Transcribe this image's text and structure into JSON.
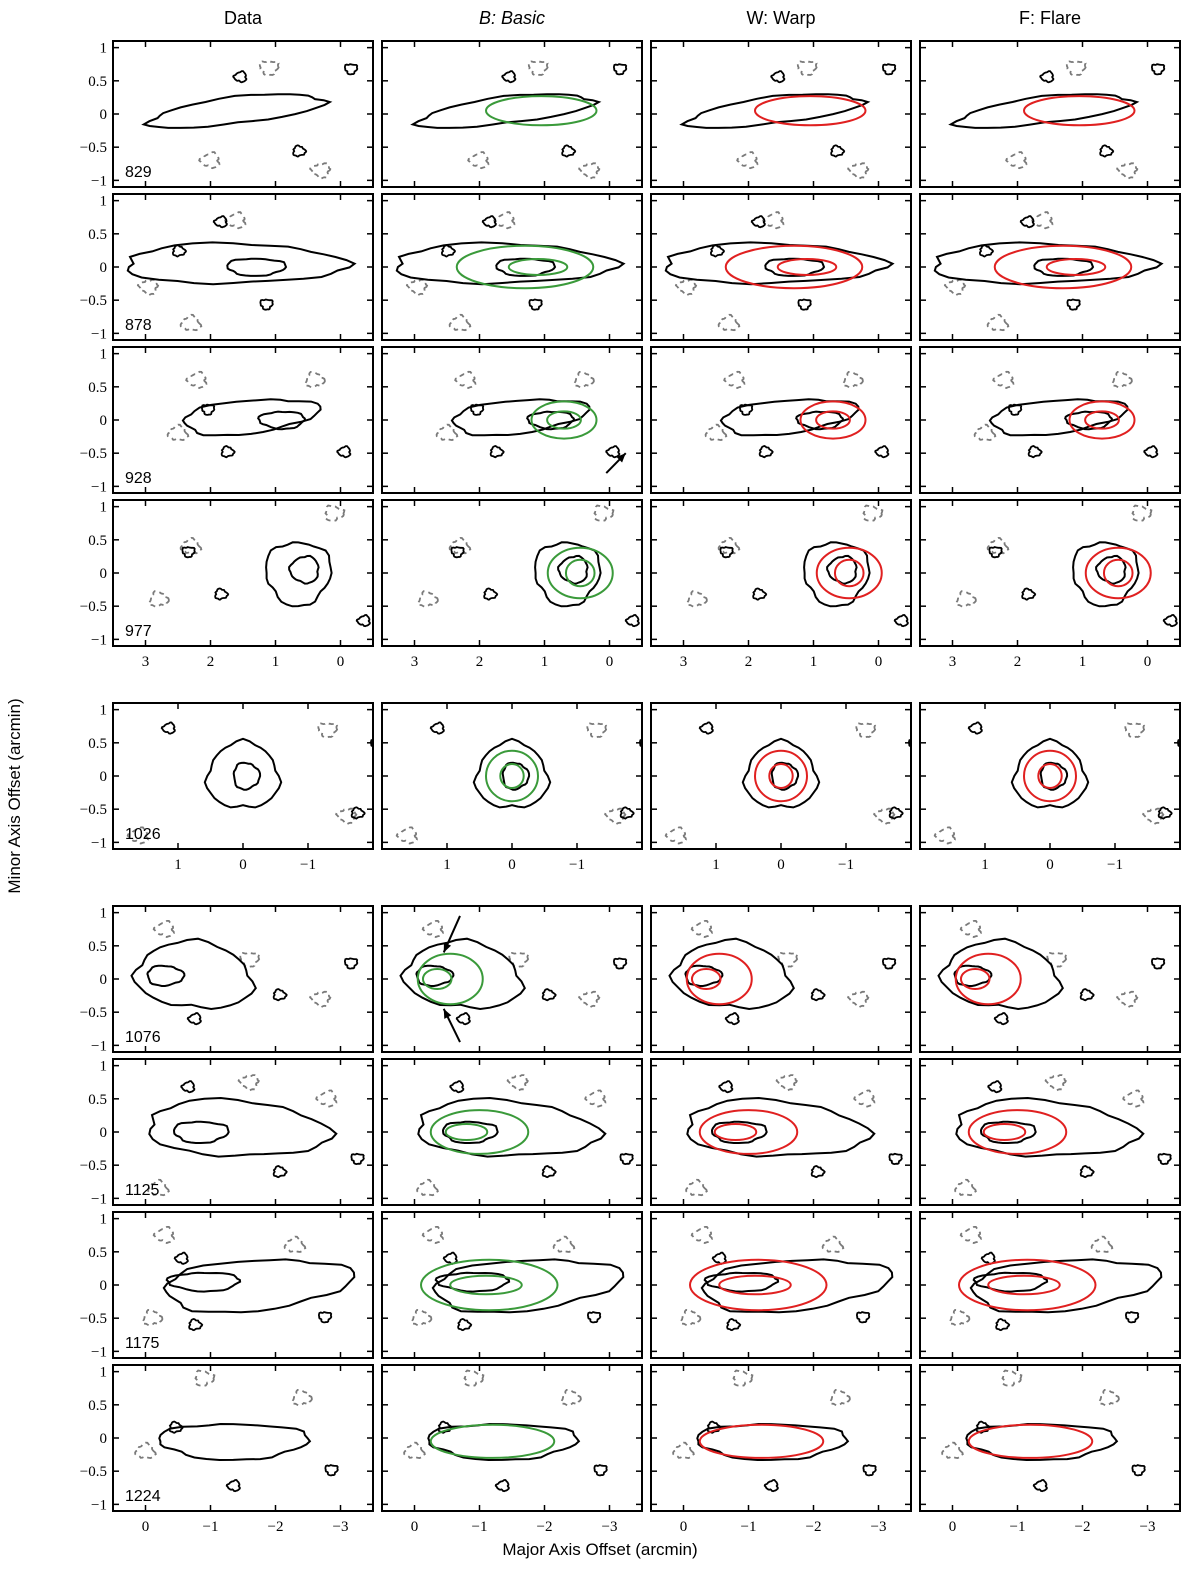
{
  "chart_data": {
    "type": "contour-panel-grid",
    "columns": [
      {
        "key": "data",
        "title": "Data",
        "italic": false,
        "model_color": null
      },
      {
        "key": "basic",
        "title": "B: Basic",
        "italic": true,
        "model_color": "#3a9a3a"
      },
      {
        "key": "warp",
        "title": "W: Warp",
        "italic": false,
        "model_color": "#e02020"
      },
      {
        "key": "flare",
        "title": "F: Flare",
        "italic": false,
        "model_color": "#e02020"
      }
    ],
    "xlabel": "Major Axis Offset (arcmin)",
    "ylabel": "Minor Axis Offset (arcmin)",
    "ylim": [
      -1.1,
      1.1
    ],
    "yticks": [
      1,
      0.5,
      0,
      -0.5,
      -1
    ],
    "ytick_labels": [
      "1",
      "0.5",
      "0",
      "−0.5",
      "−1"
    ],
    "colors": {
      "data_contour": "#000000",
      "negative_contour": "#7a7a7a",
      "basic_model": "#3a9a3a",
      "warp_model": "#e02020",
      "flare_model": "#e02020",
      "arrow": "#000000"
    },
    "groups": [
      {
        "xlim": [
          3.5,
          -0.5
        ],
        "xticks": [
          3,
          2,
          1,
          0
        ],
        "xtick_labels": [
          "3",
          "2",
          "1",
          "0"
        ],
        "rows": [
          {
            "channel": "829",
            "blobs": [
              [
                1.6,
                0.05,
                1.35,
                0.2,
                -0.12
              ]
            ],
            "model": [
              [
                1.05,
                0.05,
                0.85,
                0.22
              ]
            ],
            "negative": [
              [
                1.1,
                0.7
              ],
              [
                0.3,
                -0.85
              ],
              [
                2.0,
                -0.7
              ]
            ]
          },
          {
            "channel": "878",
            "blobs": [
              [
                1.65,
                0.05,
                1.7,
                0.3,
                0
              ],
              [
                1.3,
                0.0,
                0.45,
                0.13,
                0
              ]
            ],
            "model": [
              [
                1.3,
                0.0,
                1.05,
                0.32
              ],
              [
                1.1,
                0.0,
                0.45,
                0.12
              ]
            ],
            "negative": [
              [
                2.95,
                -0.3
              ],
              [
                1.6,
                0.7
              ],
              [
                2.3,
                -0.85
              ]
            ]
          },
          {
            "channel": "928",
            "blobs": [
              [
                1.4,
                0.05,
                1.05,
                0.25,
                -0.1
              ],
              [
                0.9,
                0.0,
                0.35,
                0.13,
                0
              ]
            ],
            "model": [
              [
                0.7,
                0.0,
                0.5,
                0.28
              ],
              [
                0.7,
                0.0,
                0.26,
                0.13
              ]
            ],
            "negative": [
              [
                2.2,
                0.6
              ],
              [
                2.5,
                -0.2
              ],
              [
                0.4,
                0.6
              ]
            ],
            "arrow": {
              "from": [
                0.05,
                -0.8
              ],
              "to": [
                -0.25,
                -0.5
              ]
            }
          },
          {
            "channel": "977",
            "blobs": [
              [
                0.65,
                0.0,
                0.5,
                0.48,
                0
              ],
              [
                0.55,
                0.05,
                0.22,
                0.2,
                0
              ]
            ],
            "model": [
              [
                0.45,
                0.0,
                0.5,
                0.38
              ],
              [
                0.45,
                0.0,
                0.22,
                0.2
              ]
            ],
            "negative": [
              [
                2.3,
                0.4
              ],
              [
                2.8,
                -0.4
              ],
              [
                0.1,
                0.9
              ]
            ]
          }
        ]
      },
      {
        "xlim": [
          2.0,
          -2.0
        ],
        "xticks": [
          1,
          0,
          -1
        ],
        "xtick_labels": [
          "1",
          "0",
          "−1"
        ],
        "rows": [
          {
            "channel": "1026",
            "blobs": [
              [
                0.0,
                0.0,
                0.55,
                0.5,
                0
              ],
              [
                -0.05,
                0.0,
                0.2,
                0.2,
                0
              ]
            ],
            "model": [
              [
                0.0,
                0.0,
                0.4,
                0.38
              ],
              [
                0.0,
                0.0,
                0.18,
                0.18
              ]
            ],
            "negative": [
              [
                -1.3,
                0.7
              ],
              [
                -1.6,
                -0.6
              ],
              [
                1.6,
                -0.9
              ]
            ]
          }
        ]
      },
      {
        "xlim": [
          0.5,
          -3.5
        ],
        "xticks": [
          0,
          -1,
          -2,
          -3
        ],
        "xtick_labels": [
          "0",
          "−1",
          "−2",
          "−3"
        ],
        "rows": [
          {
            "channel": "1076",
            "blobs": [
              [
                -0.75,
                0.05,
                0.9,
                0.5,
                0.1
              ],
              [
                -0.3,
                0.05,
                0.28,
                0.15,
                0
              ]
            ],
            "model": [
              [
                -0.55,
                0.0,
                0.5,
                0.38
              ],
              [
                -0.35,
                0.0,
                0.22,
                0.15
              ]
            ],
            "negative": [
              [
                -1.6,
                0.3
              ],
              [
                -2.7,
                -0.3
              ],
              [
                -0.3,
                0.75
              ]
            ],
            "arrows": [
              {
                "from": [
                  -0.7,
                  0.95
                ],
                "to": [
                  -0.45,
                  0.4
                ]
              },
              {
                "from": [
                  -0.7,
                  -0.95
                ],
                "to": [
                  -0.45,
                  -0.45
                ]
              }
            ]
          },
          {
            "channel": "1125",
            "blobs": [
              [
                -1.4,
                0.05,
                1.4,
                0.42,
                0.05
              ],
              [
                -0.85,
                0.0,
                0.42,
                0.16,
                0
              ]
            ],
            "model": [
              [
                -1.0,
                0.0,
                0.75,
                0.33
              ],
              [
                -0.8,
                0.0,
                0.32,
                0.12
              ]
            ],
            "negative": [
              [
                -1.6,
                0.75
              ],
              [
                -2.8,
                0.5
              ],
              [
                -0.2,
                -0.85
              ]
            ]
          },
          {
            "channel": "1175",
            "blobs": [
              [
                -1.7,
                0.0,
                1.45,
                0.38,
                -0.08
              ],
              [
                -0.9,
                0.05,
                0.55,
                0.14,
                0
              ]
            ],
            "model": [
              [
                -1.15,
                0.0,
                1.05,
                0.38
              ],
              [
                -1.1,
                0.0,
                0.55,
                0.14
              ]
            ],
            "negative": [
              [
                -0.3,
                0.75
              ],
              [
                -2.3,
                0.6
              ],
              [
                -0.1,
                -0.5
              ]
            ]
          },
          {
            "channel": "1224",
            "blobs": [
              [
                -1.35,
                -0.05,
                1.15,
                0.27,
                0
              ]
            ],
            "model": [
              [
                -1.2,
                -0.05,
                0.95,
                0.25
              ]
            ],
            "negative": [
              [
                0.0,
                -0.2
              ],
              [
                -2.4,
                0.6
              ],
              [
                -0.9,
                0.9
              ]
            ]
          }
        ]
      }
    ]
  }
}
